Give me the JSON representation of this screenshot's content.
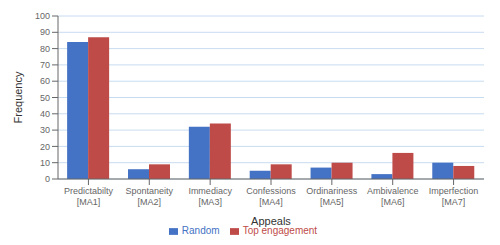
{
  "chart_data": {
    "type": "bar",
    "categories": [
      "Predictabilty\n[MA1]",
      "Spontaneity\n[MA2]",
      "Immediacy\n[MA3]",
      "Confessions\n[MA4]",
      "Ordinariness\n[MA5]",
      "Ambivalence\n[MA6]",
      "Imperfection\n[MA7]"
    ],
    "series": [
      {
        "name": "Random",
        "color": "#4472C4",
        "values": [
          84,
          6,
          32,
          5,
          7,
          3,
          10
        ]
      },
      {
        "name": "Top engagement",
        "color": "#BE4B48",
        "values": [
          87,
          9,
          34,
          9,
          10,
          16,
          8
        ]
      }
    ],
    "xlabel": "Appeals",
    "ylabel": "Frequency",
    "ylim": [
      0,
      100
    ],
    "yticks": [
      0,
      10,
      20,
      30,
      40,
      50,
      60,
      70,
      80,
      90,
      100
    ],
    "grid": true,
    "legend": "bottom"
  }
}
